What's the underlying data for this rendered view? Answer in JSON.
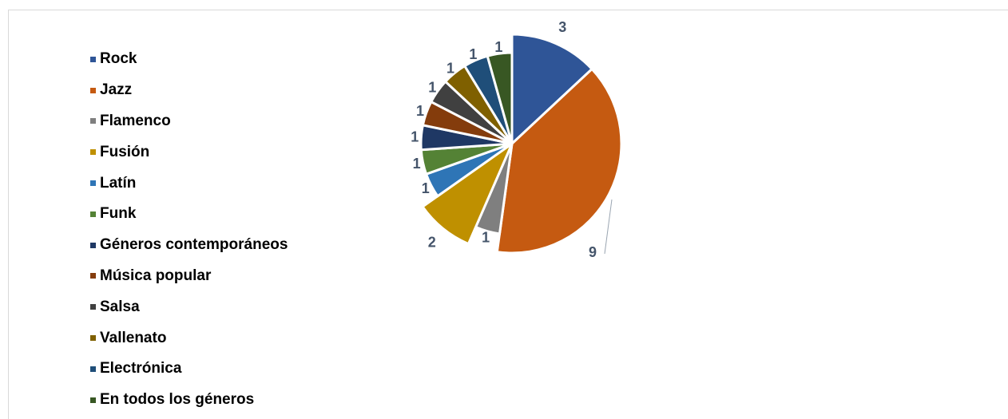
{
  "chart_data": {
    "type": "pie",
    "categories": [
      "Rock",
      "Jazz",
      "Flamenco",
      "Fusión",
      "Latín",
      "Funk",
      "Géneros contemporáneos",
      "Música popular",
      "Salsa",
      "Vallenato",
      "Electrónica",
      "En todos los géneros"
    ],
    "values": [
      3,
      9,
      1,
      2,
      1,
      1,
      1,
      1,
      1,
      1,
      1,
      1
    ],
    "data_labels": [
      "3",
      "9",
      "1",
      "2",
      "1",
      "1",
      "1",
      "1",
      "1",
      "1",
      "1",
      "1"
    ],
    "colors": [
      "#2f5597",
      "#c55a11",
      "#7f7f7f",
      "#bf9000",
      "#2e75b6",
      "#548235",
      "#1f3864",
      "#843c0c",
      "#404040",
      "#7f6000",
      "#1f4e79",
      "#385723"
    ],
    "legend_position": "left",
    "title": ""
  }
}
